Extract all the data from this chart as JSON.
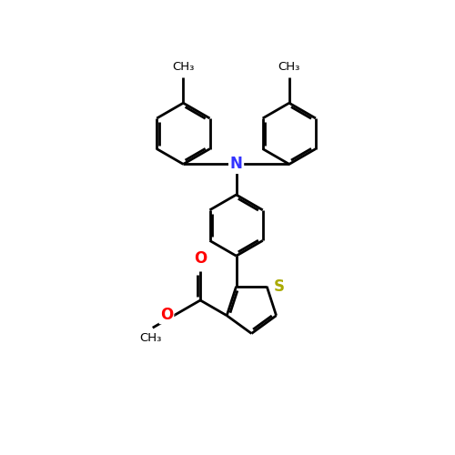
{
  "background_color": "#ffffff",
  "bond_color": "#000000",
  "N_color": "#3333ff",
  "S_color": "#aaaa00",
  "O_color": "#ff0000",
  "line_width": 2.0,
  "dbo": 0.055,
  "figsize": [
    5.0,
    5.0
  ],
  "dpi": 100,
  "xlim": [
    0,
    10
  ],
  "ylim": [
    0,
    10
  ]
}
